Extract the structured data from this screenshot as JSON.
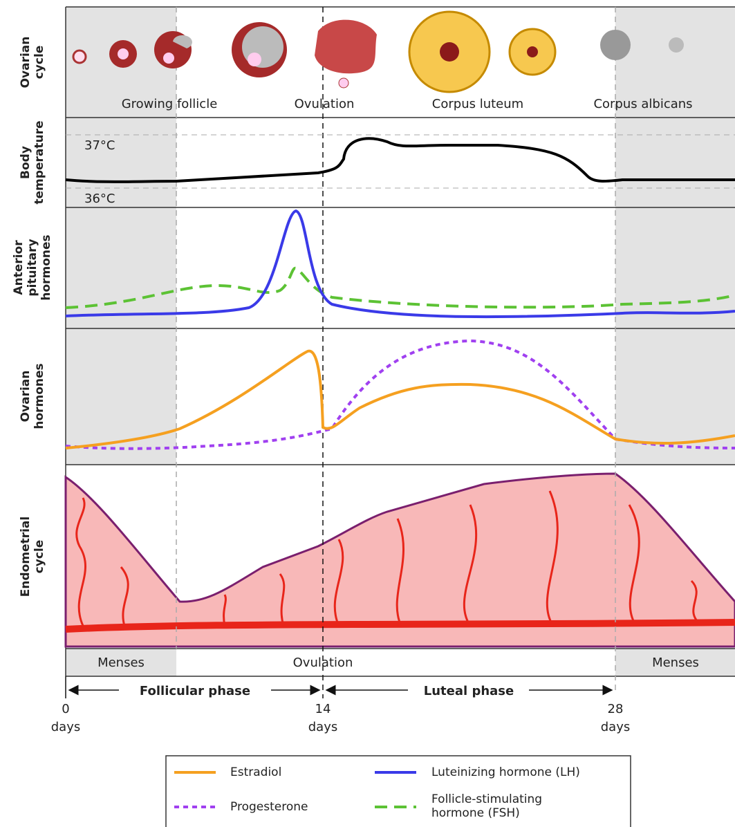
{
  "row_labels": [
    [
      "Ovarian",
      "cycle"
    ],
    [
      "Body",
      "temperature"
    ],
    [
      "Anterior",
      "pituitary",
      "hormones"
    ],
    [
      "Ovarian",
      "hormones"
    ],
    [
      "Endometrial",
      "cycle"
    ]
  ],
  "ovarian_stages": [
    "Growing follicle",
    "Ovulation",
    "Corpus luteum",
    "Corpus albicans"
  ],
  "temperatures": [
    "37°C",
    "36°C"
  ],
  "timeline": {
    "left": "Menses",
    "center": "Ovulation",
    "right": "Menses"
  },
  "phases": [
    "Follicular phase",
    "Luteal phase"
  ],
  "days": [
    {
      "value": 0,
      "unit": "days"
    },
    {
      "value": 14,
      "unit": "days"
    },
    {
      "value": 28,
      "unit": "days"
    }
  ],
  "legend": [
    "Estradiol",
    "Luteinizing hormone (LH)",
    "Progesterone",
    "Follicle-stimulating hormone (FSH)"
  ]
}
